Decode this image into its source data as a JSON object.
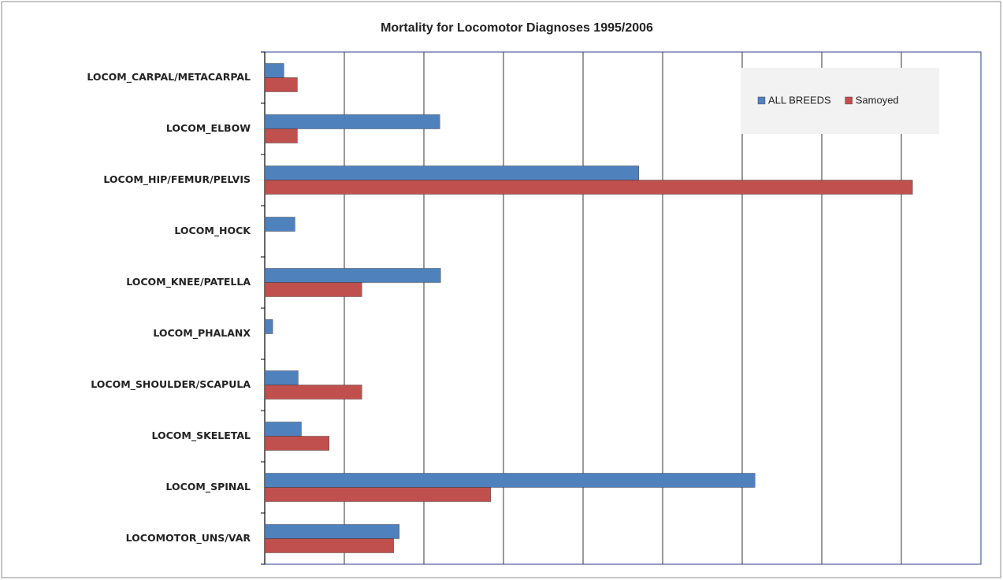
{
  "chart_data": {
    "type": "hbar",
    "title": "Mortality for Locomotor Diagnoses 1995/2006",
    "categories": [
      "LOCOM_CARPAL/METACARPAL",
      "LOCOM_ELBOW",
      "LOCOM_HIP/FEMUR/PELVIS",
      "LOCOM_HOCK",
      "LOCOM_KNEE/PATELLA",
      "LOCOM_PHALANX",
      "LOCOM_SHOULDER/SCAPULA",
      "LOCOM_SKELETAL",
      "LOCOM_SPINAL",
      "LOCOMOTOR_UNS/VAR"
    ],
    "series": [
      {
        "name": "ALL BREEDS",
        "color": "#4f81bd",
        "values": [
          0.24,
          2.2,
          4.7,
          0.38,
          2.21,
          0.1,
          0.42,
          0.46,
          6.16,
          1.69
        ]
      },
      {
        "name": "Samoyed",
        "color": "#c0504d",
        "values": [
          0.41,
          0.41,
          8.14,
          0,
          1.22,
          0,
          1.22,
          0.81,
          2.84,
          1.62
        ]
      }
    ],
    "xlim": [
      0,
      9
    ],
    "xticks": [
      0,
      1,
      2,
      3,
      4,
      5,
      6,
      7,
      8,
      9
    ],
    "grid": true,
    "legend": "top-right"
  }
}
